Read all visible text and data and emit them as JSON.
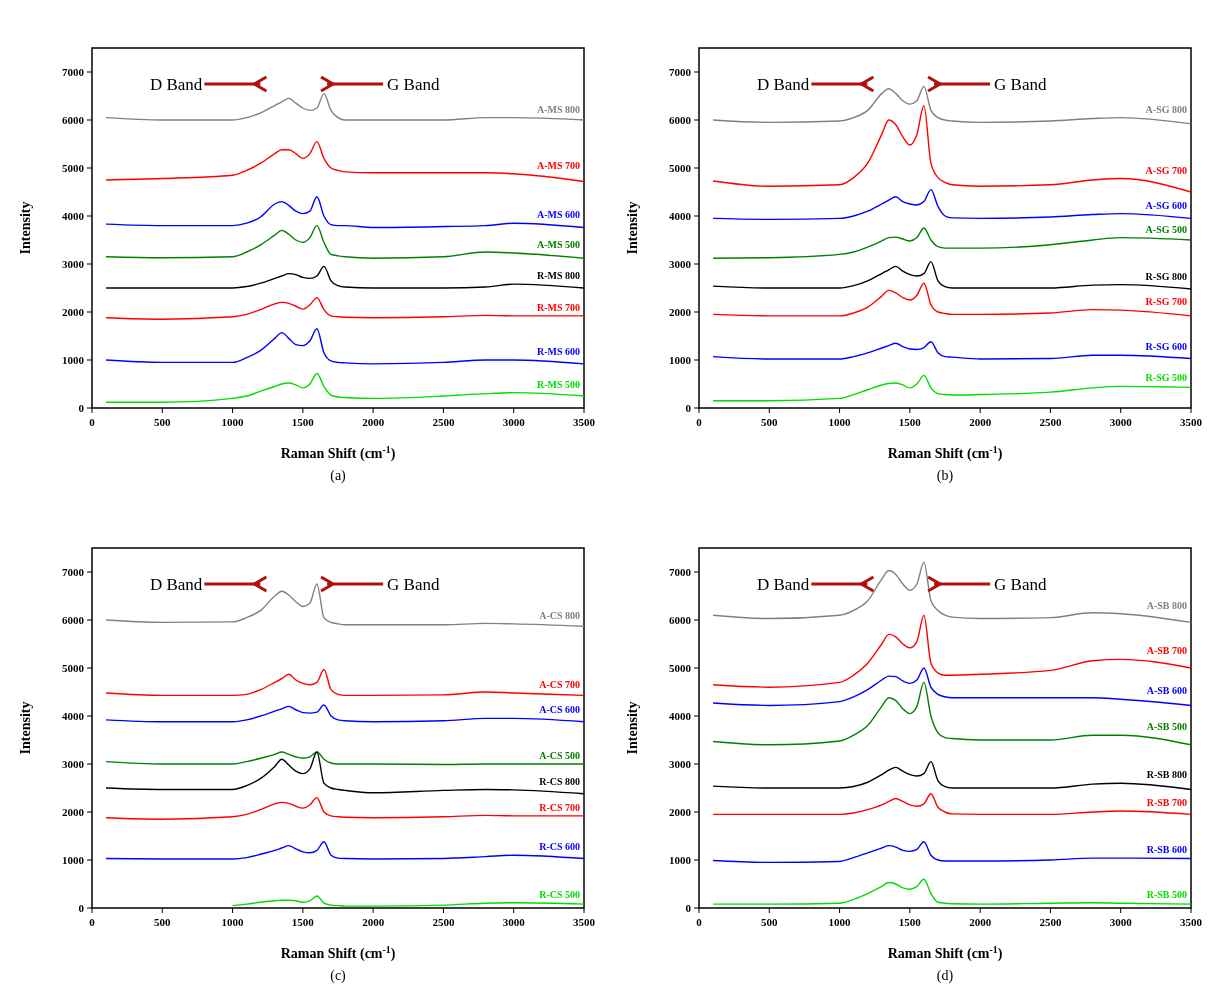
{
  "chart_data": [
    {
      "type": "line",
      "title": "(a)",
      "xlabel": "Raman Shift (cm$^{-1}$)",
      "ylabel": "Intensity",
      "xlim": [
        0,
        3500
      ],
      "ylim": [
        0,
        7500
      ],
      "xticks": [
        0,
        500,
        1000,
        1500,
        2000,
        2500,
        3000,
        3500
      ],
      "yticks": [
        0,
        1000,
        2000,
        3000,
        4000,
        5000,
        6000,
        7000
      ],
      "grid": false,
      "legend": false,
      "marker": "none",
      "line_style": "solid",
      "annotations": [
        "D Band",
        "G Band"
      ],
      "x": [
        100,
        500,
        1000,
        1100,
        1200,
        1300,
        1350,
        1400,
        1450,
        1500,
        1550,
        1600,
        1650,
        1700,
        1750,
        1800,
        2000,
        2500,
        2800,
        3000,
        3500
      ],
      "series": [
        {
          "name": "A-MS 800",
          "color": "#808080",
          "values": [
            6050,
            6000,
            6000,
            6050,
            6150,
            6300,
            6380,
            6450,
            6350,
            6250,
            6200,
            6250,
            6550,
            6200,
            6050,
            6000,
            6000,
            6000,
            6050,
            6050,
            6000
          ]
        },
        {
          "name": "A-MS 700",
          "color": "#ff0000",
          "values": [
            4750,
            4780,
            4850,
            4950,
            5100,
            5300,
            5380,
            5380,
            5300,
            5200,
            5300,
            5550,
            5200,
            5000,
            4950,
            4920,
            4900,
            4900,
            4900,
            4880,
            4720
          ]
        },
        {
          "name": "A-MS 600",
          "color": "#0000ff",
          "values": [
            3830,
            3800,
            3800,
            3850,
            3980,
            4250,
            4300,
            4220,
            4100,
            4050,
            4100,
            4400,
            4000,
            3820,
            3800,
            3800,
            3760,
            3780,
            3800,
            3850,
            3760
          ]
        },
        {
          "name": "A-MS 500",
          "color": "#008000",
          "values": [
            3150,
            3130,
            3150,
            3250,
            3400,
            3600,
            3700,
            3620,
            3500,
            3450,
            3550,
            3800,
            3450,
            3200,
            3170,
            3150,
            3120,
            3150,
            3250,
            3230,
            3120
          ]
        },
        {
          "name": "R-MS 800",
          "color": "#000000",
          "values": [
            2500,
            2500,
            2500,
            2530,
            2600,
            2700,
            2750,
            2800,
            2780,
            2720,
            2700,
            2750,
            2950,
            2650,
            2550,
            2520,
            2500,
            2500,
            2520,
            2580,
            2500
          ]
        },
        {
          "name": "R-MS 700",
          "color": "#ff0000",
          "values": [
            1880,
            1850,
            1900,
            1950,
            2050,
            2170,
            2200,
            2180,
            2120,
            2060,
            2150,
            2300,
            2050,
            1920,
            1900,
            1890,
            1880,
            1900,
            1930,
            1920,
            1920
          ]
        },
        {
          "name": "R-MS 600",
          "color": "#0000ff",
          "values": [
            1000,
            950,
            950,
            1050,
            1200,
            1450,
            1570,
            1450,
            1320,
            1300,
            1400,
            1650,
            1150,
            980,
            950,
            940,
            920,
            950,
            1000,
            1000,
            920
          ]
        },
        {
          "name": "R-MS 500",
          "color": "#00dd00",
          "values": [
            120,
            120,
            200,
            250,
            350,
            450,
            500,
            520,
            480,
            420,
            500,
            720,
            450,
            270,
            230,
            220,
            200,
            250,
            300,
            320,
            250
          ]
        }
      ]
    },
    {
      "type": "line",
      "title": "(b)",
      "xlabel": "Raman Shift (cm$^{-1}$)",
      "ylabel": "Intensity",
      "xlim": [
        0,
        3500
      ],
      "ylim": [
        0,
        7500
      ],
      "xticks": [
        0,
        500,
        1000,
        1500,
        2000,
        2500,
        3000,
        3500
      ],
      "yticks": [
        0,
        1000,
        2000,
        3000,
        4000,
        5000,
        6000,
        7000
      ],
      "grid": false,
      "legend": false,
      "marker": "none",
      "line_style": "solid",
      "annotations": [
        "D Band",
        "G Band"
      ],
      "x": [
        100,
        500,
        1000,
        1100,
        1200,
        1300,
        1350,
        1400,
        1450,
        1500,
        1550,
        1600,
        1650,
        1700,
        1750,
        1800,
        2000,
        2500,
        2800,
        3000,
        3500
      ],
      "series": [
        {
          "name": "A-SG 800",
          "color": "#808080",
          "values": [
            6000,
            5950,
            5980,
            6050,
            6200,
            6550,
            6650,
            6550,
            6400,
            6330,
            6400,
            6700,
            6200,
            6050,
            6000,
            5980,
            5950,
            5980,
            6030,
            6050,
            5920
          ]
        },
        {
          "name": "A-SG 700",
          "color": "#ff0000",
          "values": [
            4730,
            4620,
            4650,
            4800,
            5100,
            5700,
            6000,
            5900,
            5650,
            5480,
            5700,
            6300,
            5100,
            4800,
            4700,
            4650,
            4620,
            4650,
            4750,
            4780,
            4500
          ]
        },
        {
          "name": "A-SG 600",
          "color": "#0000ff",
          "values": [
            3950,
            3930,
            3950,
            4000,
            4100,
            4250,
            4330,
            4400,
            4300,
            4250,
            4230,
            4300,
            4550,
            4200,
            4000,
            3960,
            3950,
            3980,
            4030,
            4050,
            3950
          ]
        },
        {
          "name": "A-SG 500",
          "color": "#008000",
          "values": [
            3120,
            3130,
            3200,
            3250,
            3350,
            3480,
            3550,
            3560,
            3520,
            3480,
            3550,
            3750,
            3500,
            3360,
            3330,
            3330,
            3330,
            3400,
            3500,
            3550,
            3500
          ]
        },
        {
          "name": "R-SG 800",
          "color": "#000000",
          "values": [
            2540,
            2500,
            2500,
            2550,
            2650,
            2800,
            2880,
            2950,
            2850,
            2780,
            2750,
            2800,
            3050,
            2650,
            2530,
            2500,
            2500,
            2500,
            2560,
            2570,
            2480
          ]
        },
        {
          "name": "R-SG 700",
          "color": "#ff0000",
          "values": [
            1950,
            1920,
            1920,
            1980,
            2100,
            2330,
            2450,
            2400,
            2300,
            2250,
            2350,
            2600,
            2150,
            2000,
            1970,
            1950,
            1950,
            1980,
            2050,
            2040,
            1920
          ]
        },
        {
          "name": "R-SG 600",
          "color": "#0000ff",
          "values": [
            1070,
            1020,
            1020,
            1070,
            1150,
            1250,
            1300,
            1350,
            1280,
            1230,
            1220,
            1260,
            1380,
            1150,
            1070,
            1060,
            1020,
            1030,
            1100,
            1100,
            1030
          ]
        },
        {
          "name": "R-SG 500",
          "color": "#00dd00",
          "values": [
            150,
            150,
            200,
            280,
            380,
            480,
            510,
            520,
            480,
            420,
            500,
            680,
            420,
            300,
            280,
            270,
            280,
            330,
            420,
            450,
            430
          ]
        }
      ]
    },
    {
      "type": "line",
      "title": "(c)",
      "xlabel": "Raman Shift (cm$^{-1}$)",
      "ylabel": "Intensity",
      "xlim": [
        0,
        3500
      ],
      "ylim": [
        0,
        7500
      ],
      "xticks": [
        0,
        500,
        1000,
        1500,
        2000,
        2500,
        3000,
        3500
      ],
      "yticks": [
        0,
        1000,
        2000,
        3000,
        4000,
        5000,
        6000,
        7000
      ],
      "grid": false,
      "legend": false,
      "marker": "none",
      "line_style": "solid",
      "annotations": [
        "D Band",
        "G Band"
      ],
      "x": [
        100,
        500,
        1000,
        1100,
        1200,
        1300,
        1350,
        1400,
        1450,
        1500,
        1550,
        1600,
        1650,
        1700,
        1750,
        1800,
        2000,
        2500,
        2800,
        3000,
        3500
      ],
      "series": [
        {
          "name": "A-CS 800",
          "color": "#808080",
          "values": [
            6000,
            5950,
            5960,
            6050,
            6200,
            6500,
            6600,
            6520,
            6380,
            6280,
            6350,
            6750,
            6050,
            5950,
            5920,
            5900,
            5900,
            5900,
            5930,
            5920,
            5870
          ]
        },
        {
          "name": "A-CS 700",
          "color": "#ff0000",
          "values": [
            4480,
            4430,
            4430,
            4450,
            4550,
            4700,
            4780,
            4870,
            4750,
            4680,
            4650,
            4700,
            4970,
            4550,
            4450,
            4430,
            4430,
            4440,
            4500,
            4480,
            4430
          ]
        },
        {
          "name": "A-CS 600",
          "color": "#0000ff",
          "values": [
            3920,
            3880,
            3880,
            3920,
            4000,
            4100,
            4150,
            4200,
            4130,
            4070,
            4060,
            4080,
            4230,
            4000,
            3920,
            3900,
            3880,
            3900,
            3950,
            3950,
            3880
          ]
        },
        {
          "name": "A-CS 500",
          "color": "#008000",
          "values": [
            3050,
            3000,
            3000,
            3050,
            3120,
            3200,
            3250,
            3200,
            3150,
            3120,
            3150,
            3250,
            3100,
            3020,
            3000,
            3000,
            3000,
            2990,
            3000,
            3000,
            3000
          ]
        },
        {
          "name": "R-CS 800",
          "color": "#000000",
          "values": [
            2500,
            2470,
            2470,
            2550,
            2700,
            2950,
            3100,
            2980,
            2850,
            2800,
            2900,
            3250,
            2600,
            2500,
            2470,
            2450,
            2400,
            2450,
            2470,
            2460,
            2380
          ]
        },
        {
          "name": "R-CS 700",
          "color": "#ff0000",
          "values": [
            1880,
            1850,
            1900,
            1950,
            2050,
            2170,
            2200,
            2180,
            2120,
            2080,
            2150,
            2300,
            2000,
            1920,
            1900,
            1890,
            1880,
            1900,
            1930,
            1920,
            1920
          ]
        },
        {
          "name": "R-CS 600",
          "color": "#0000ff",
          "values": [
            1030,
            1020,
            1020,
            1050,
            1120,
            1200,
            1250,
            1300,
            1230,
            1170,
            1150,
            1200,
            1380,
            1100,
            1040,
            1030,
            1020,
            1030,
            1070,
            1100,
            1030
          ]
        },
        {
          "name": "R-CS 500",
          "color": "#00dd00",
          "values": [
            null,
            null,
            50,
            80,
            120,
            150,
            160,
            160,
            150,
            120,
            150,
            250,
            100,
            60,
            50,
            40,
            40,
            60,
            100,
            110,
            80
          ]
        }
      ]
    },
    {
      "type": "line",
      "title": "(d)",
      "xlabel": "Raman Shift (cm$^{-1}$)",
      "ylabel": "Intensity",
      "xlim": [
        0,
        3500
      ],
      "ylim": [
        0,
        7500
      ],
      "xticks": [
        0,
        500,
        1000,
        1500,
        2000,
        2500,
        3000,
        3500
      ],
      "yticks": [
        0,
        1000,
        2000,
        3000,
        4000,
        5000,
        6000,
        7000
      ],
      "grid": false,
      "legend": false,
      "marker": "none",
      "line_style": "solid",
      "annotations": [
        "D Band",
        "G Band"
      ],
      "x": [
        100,
        500,
        1000,
        1100,
        1200,
        1300,
        1350,
        1400,
        1450,
        1500,
        1550,
        1600,
        1650,
        1700,
        1750,
        1800,
        2000,
        2500,
        2800,
        3000,
        3500
      ],
      "series": [
        {
          "name": "A-SB 800",
          "color": "#808080",
          "values": [
            6100,
            6030,
            6100,
            6200,
            6400,
            6850,
            7030,
            6950,
            6750,
            6620,
            6750,
            7200,
            6400,
            6200,
            6100,
            6060,
            6030,
            6050,
            6150,
            6130,
            5950
          ]
        },
        {
          "name": "A-SB 700",
          "color": "#ff0000",
          "values": [
            4650,
            4600,
            4700,
            4850,
            5100,
            5500,
            5700,
            5650,
            5500,
            5420,
            5550,
            6100,
            5100,
            4900,
            4850,
            4850,
            4870,
            4950,
            5150,
            5180,
            5000
          ]
        },
        {
          "name": "A-SB 600",
          "color": "#0000ff",
          "values": [
            4270,
            4220,
            4300,
            4400,
            4550,
            4750,
            4830,
            4820,
            4730,
            4680,
            4750,
            5000,
            4600,
            4450,
            4400,
            4380,
            4380,
            4380,
            4380,
            4350,
            4220
          ]
        },
        {
          "name": "A-SB 500",
          "color": "#008000",
          "values": [
            3470,
            3400,
            3480,
            3600,
            3800,
            4200,
            4380,
            4320,
            4150,
            4050,
            4200,
            4700,
            4000,
            3650,
            3550,
            3530,
            3500,
            3500,
            3600,
            3600,
            3400
          ]
        },
        {
          "name": "R-SB 800",
          "color": "#000000",
          "values": [
            2540,
            2500,
            2500,
            2530,
            2620,
            2780,
            2870,
            2930,
            2850,
            2780,
            2750,
            2800,
            3050,
            2650,
            2530,
            2500,
            2500,
            2500,
            2580,
            2600,
            2470
          ]
        },
        {
          "name": "R-SB 700",
          "color": "#ff0000",
          "values": [
            1950,
            1950,
            1950,
            1980,
            2050,
            2150,
            2220,
            2280,
            2220,
            2150,
            2120,
            2170,
            2380,
            2100,
            2000,
            1960,
            1950,
            1950,
            2000,
            2020,
            1950
          ]
        },
        {
          "name": "R-SB 600",
          "color": "#0000ff",
          "values": [
            990,
            950,
            970,
            1050,
            1150,
            1250,
            1300,
            1270,
            1200,
            1180,
            1220,
            1380,
            1100,
            1000,
            980,
            980,
            980,
            1000,
            1040,
            1040,
            1030
          ]
        },
        {
          "name": "R-SB 500",
          "color": "#00dd00",
          "values": [
            80,
            80,
            100,
            180,
            300,
            450,
            530,
            500,
            420,
            390,
            450,
            600,
            300,
            120,
            100,
            90,
            80,
            100,
            110,
            100,
            80
          ]
        }
      ]
    }
  ]
}
